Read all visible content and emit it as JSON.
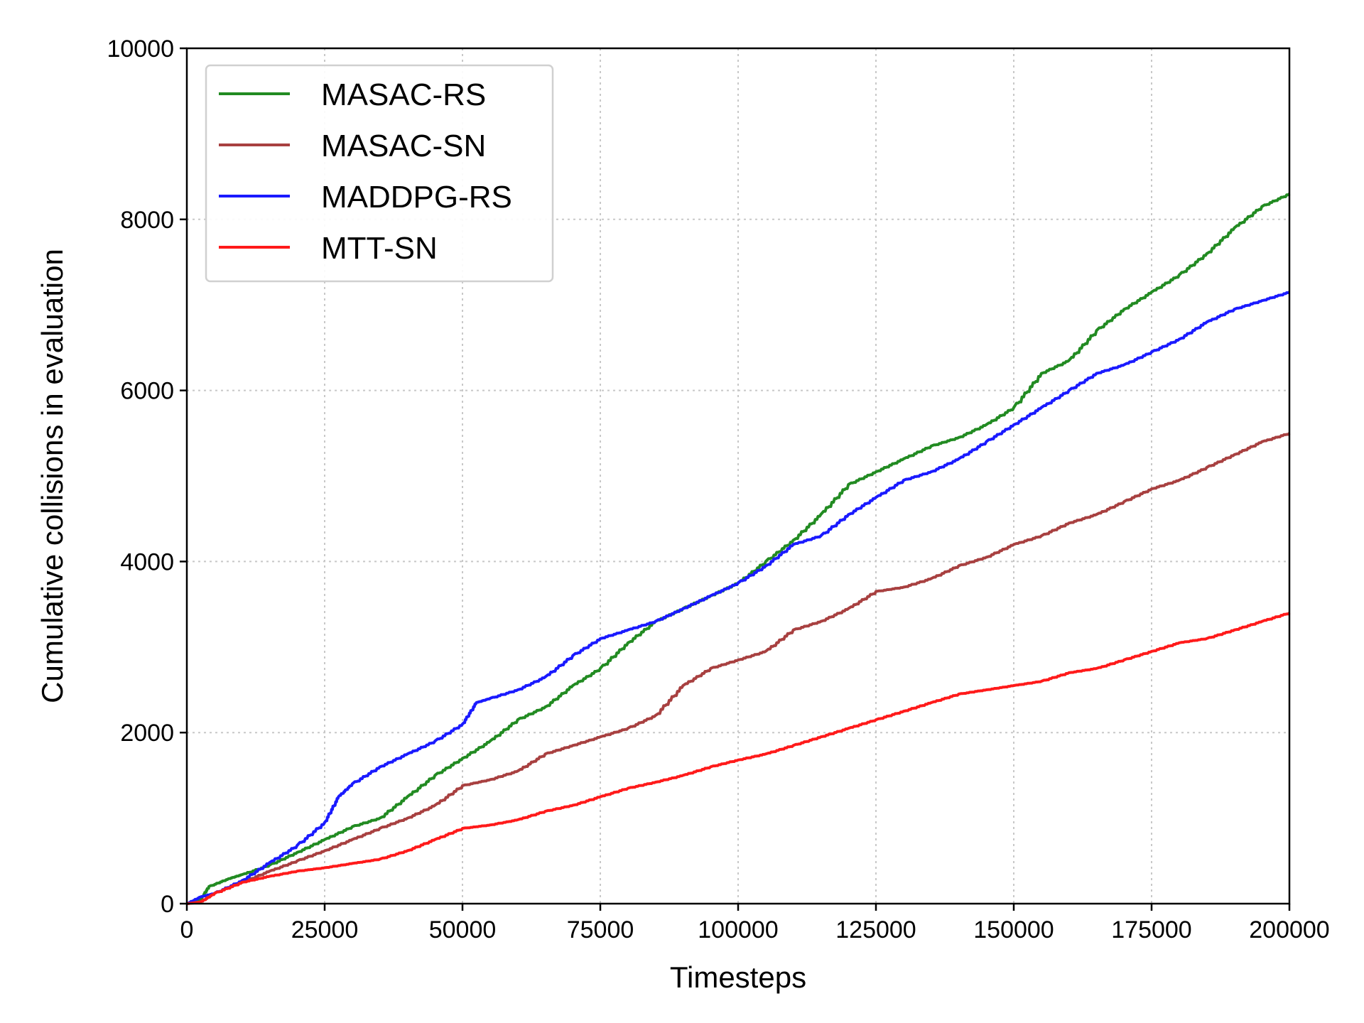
{
  "chart_data": {
    "type": "line",
    "title": "",
    "xlabel": "Timesteps",
    "ylabel": "Cumulative collisions in evaluation",
    "xlim": [
      0,
      200000
    ],
    "ylim": [
      0,
      10000
    ],
    "xticks": [
      0,
      25000,
      50000,
      75000,
      100000,
      125000,
      150000,
      175000,
      200000
    ],
    "yticks": [
      0,
      2000,
      4000,
      6000,
      8000,
      10000
    ],
    "xtick_labels": [
      "0",
      "25000",
      "50000",
      "75000",
      "100000",
      "125000",
      "150000",
      "175000",
      "200000"
    ],
    "ytick_labels": [
      "0",
      "2000",
      "4000",
      "6000",
      "8000",
      "10000"
    ],
    "grid": true,
    "legend_position": "top-left",
    "series": [
      {
        "name": "MASAC-RS",
        "color": "#228B22",
        "x": [
          0,
          2500,
          4000,
          7500,
          10000,
          15000,
          20000,
          25000,
          30000,
          35000,
          40000,
          45000,
          50000,
          55000,
          60000,
          65000,
          70000,
          75000,
          80000,
          85000,
          90000,
          95000,
          100000,
          105000,
          110000,
          115000,
          120000,
          125000,
          130000,
          135000,
          140000,
          145000,
          150000,
          155000,
          160000,
          165000,
          170000,
          175000,
          180000,
          185000,
          190000,
          195000,
          200000
        ],
        "y": [
          0,
          50,
          200,
          290,
          340,
          450,
          600,
          750,
          900,
          1000,
          1250,
          1500,
          1700,
          1900,
          2150,
          2300,
          2550,
          2750,
          3050,
          3300,
          3450,
          3600,
          3750,
          4000,
          4250,
          4550,
          4900,
          5050,
          5200,
          5350,
          5450,
          5600,
          5800,
          6200,
          6350,
          6700,
          6950,
          7150,
          7350,
          7600,
          7900,
          8150,
          8300
        ]
      },
      {
        "name": "MASAC-SN",
        "color": "#A84040",
        "x": [
          0,
          2500,
          5000,
          10000,
          15000,
          20000,
          25000,
          30000,
          35000,
          40000,
          45000,
          50000,
          55000,
          60000,
          65000,
          70000,
          75000,
          80000,
          85000,
          90000,
          95000,
          100000,
          105000,
          110000,
          115000,
          120000,
          125000,
          130000,
          135000,
          140000,
          145000,
          150000,
          155000,
          160000,
          165000,
          170000,
          175000,
          180000,
          185000,
          190000,
          195000,
          200000
        ],
        "y": [
          0,
          20,
          120,
          250,
          380,
          500,
          620,
          750,
          880,
          1000,
          1150,
          1380,
          1450,
          1550,
          1750,
          1850,
          1950,
          2050,
          2200,
          2550,
          2750,
          2850,
          2950,
          3200,
          3300,
          3450,
          3650,
          3700,
          3800,
          3950,
          4050,
          4200,
          4300,
          4450,
          4550,
          4700,
          4850,
          4950,
          5100,
          5250,
          5400,
          5500
        ]
      },
      {
        "name": "MADDPG-RS",
        "color": "#1A1AFF",
        "x": [
          0,
          2500,
          5000,
          10000,
          15000,
          20000,
          25000,
          27500,
          30000,
          35000,
          40000,
          45000,
          50000,
          52500,
          55000,
          60000,
          65000,
          70000,
          75000,
          80000,
          85000,
          90000,
          95000,
          100000,
          105000,
          110000,
          115000,
          120000,
          125000,
          130000,
          135000,
          140000,
          145000,
          150000,
          155000,
          160000,
          165000,
          170000,
          175000,
          180000,
          185000,
          190000,
          195000,
          200000
        ],
        "y": [
          0,
          80,
          120,
          270,
          480,
          680,
          950,
          1250,
          1400,
          1600,
          1750,
          1900,
          2100,
          2350,
          2400,
          2500,
          2650,
          2900,
          3100,
          3200,
          3300,
          3450,
          3600,
          3750,
          3950,
          4200,
          4300,
          4550,
          4750,
          4950,
          5050,
          5200,
          5400,
          5600,
          5800,
          6000,
          6200,
          6300,
          6450,
          6600,
          6800,
          6950,
          7050,
          7150
        ]
      },
      {
        "name": "MTT-SN",
        "color": "#FF1A1A",
        "x": [
          0,
          2500,
          5000,
          10000,
          15000,
          20000,
          25000,
          30000,
          35000,
          40000,
          45000,
          50000,
          55000,
          60000,
          65000,
          70000,
          75000,
          80000,
          85000,
          90000,
          95000,
          100000,
          105000,
          110000,
          115000,
          120000,
          125000,
          130000,
          135000,
          140000,
          145000,
          150000,
          155000,
          160000,
          165000,
          170000,
          175000,
          180000,
          185000,
          190000,
          195000,
          200000
        ],
        "y": [
          0,
          20,
          120,
          250,
          320,
          380,
          420,
          470,
          520,
          620,
          750,
          880,
          920,
          980,
          1080,
          1150,
          1250,
          1350,
          1420,
          1500,
          1600,
          1680,
          1750,
          1850,
          1950,
          2050,
          2150,
          2250,
          2350,
          2450,
          2500,
          2550,
          2600,
          2700,
          2750,
          2850,
          2950,
          3050,
          3100,
          3200,
          3300,
          3400
        ]
      }
    ]
  }
}
